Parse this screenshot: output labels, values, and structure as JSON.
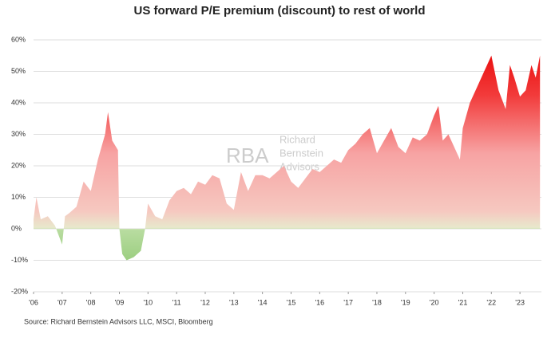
{
  "chart_data": {
    "type": "area",
    "title": "US forward P/E premium (discount) to rest of world",
    "source": "Source: Richard Bernstein Advisors LLC, MSCI, Bloomberg",
    "watermark": [
      "RBA",
      "Richard",
      "Bernstein",
      "Advisors"
    ],
    "x": [
      2006.0,
      2006.1,
      2006.25,
      2006.5,
      2006.75,
      2007.0,
      2007.1,
      2007.25,
      2007.5,
      2007.75,
      2008.0,
      2008.25,
      2008.5,
      2008.6,
      2008.75,
      2008.95,
      2009.0,
      2009.1,
      2009.25,
      2009.5,
      2009.75,
      2009.9,
      2010.0,
      2010.25,
      2010.5,
      2010.75,
      2011.0,
      2011.25,
      2011.5,
      2011.75,
      2012.0,
      2012.25,
      2012.5,
      2012.75,
      2013.0,
      2013.25,
      2013.5,
      2013.75,
      2014.0,
      2014.25,
      2014.5,
      2014.75,
      2015.0,
      2015.25,
      2015.5,
      2015.75,
      2016.0,
      2016.25,
      2016.5,
      2016.75,
      2017.0,
      2017.25,
      2017.5,
      2017.75,
      2018.0,
      2018.25,
      2018.5,
      2018.75,
      2019.0,
      2019.25,
      2019.5,
      2019.75,
      2020.0,
      2020.15,
      2020.3,
      2020.5,
      2020.75,
      2020.9,
      2021.0,
      2021.25,
      2021.5,
      2021.75,
      2022.0,
      2022.25,
      2022.5,
      2022.65,
      2022.8,
      2023.0,
      2023.2,
      2023.4,
      2023.55,
      2023.7
    ],
    "values": [
      3,
      10,
      3,
      4,
      1,
      -5,
      4,
      5,
      7,
      15,
      12,
      22,
      30,
      37,
      28,
      25,
      0,
      -8,
      -10,
      -9,
      -7,
      0,
      8,
      4,
      3,
      9,
      12,
      13,
      11,
      15,
      14,
      17,
      16,
      8,
      6,
      18,
      12,
      17,
      17,
      16,
      18,
      20,
      15,
      13,
      16,
      19,
      18,
      20,
      22,
      21,
      25,
      27,
      30,
      32,
      24,
      28,
      32,
      26,
      24,
      29,
      28,
      30,
      36,
      39,
      28,
      30,
      25,
      22,
      32,
      40,
      45,
      50,
      55,
      44,
      38,
      52,
      48,
      42,
      44,
      52,
      48,
      55
    ],
    "xlim": [
      2006,
      2023.75
    ],
    "xticks": [
      {
        "value": 2006,
        "label": "'06"
      },
      {
        "value": 2007,
        "label": "'07"
      },
      {
        "value": 2008,
        "label": "'08"
      },
      {
        "value": 2009,
        "label": "'09"
      },
      {
        "value": 2010,
        "label": "'10"
      },
      {
        "value": 2011,
        "label": "'11"
      },
      {
        "value": 2012,
        "label": "'12"
      },
      {
        "value": 2013,
        "label": "'13"
      },
      {
        "value": 2014,
        "label": "'14"
      },
      {
        "value": 2015,
        "label": "'15"
      },
      {
        "value": 2016,
        "label": "'16"
      },
      {
        "value": 2017,
        "label": "'17"
      },
      {
        "value": 2018,
        "label": "'18"
      },
      {
        "value": 2019,
        "label": "'19"
      },
      {
        "value": 2020,
        "label": "'20"
      },
      {
        "value": 2021,
        "label": "'21"
      },
      {
        "value": 2022,
        "label": "'22"
      },
      {
        "value": 2023,
        "label": "'23"
      }
    ],
    "ylim": [
      -20,
      60
    ],
    "yticks": [
      {
        "value": -20,
        "label": "-20%"
      },
      {
        "value": -10,
        "label": "-10%"
      },
      {
        "value": 0,
        "label": "0%"
      },
      {
        "value": 10,
        "label": "10%"
      },
      {
        "value": 20,
        "label": "20%"
      },
      {
        "value": 30,
        "label": "30%"
      },
      {
        "value": 40,
        "label": "40%"
      },
      {
        "value": 50,
        "label": "50%"
      },
      {
        "value": 60,
        "label": "60%"
      }
    ],
    "grid": true
  }
}
